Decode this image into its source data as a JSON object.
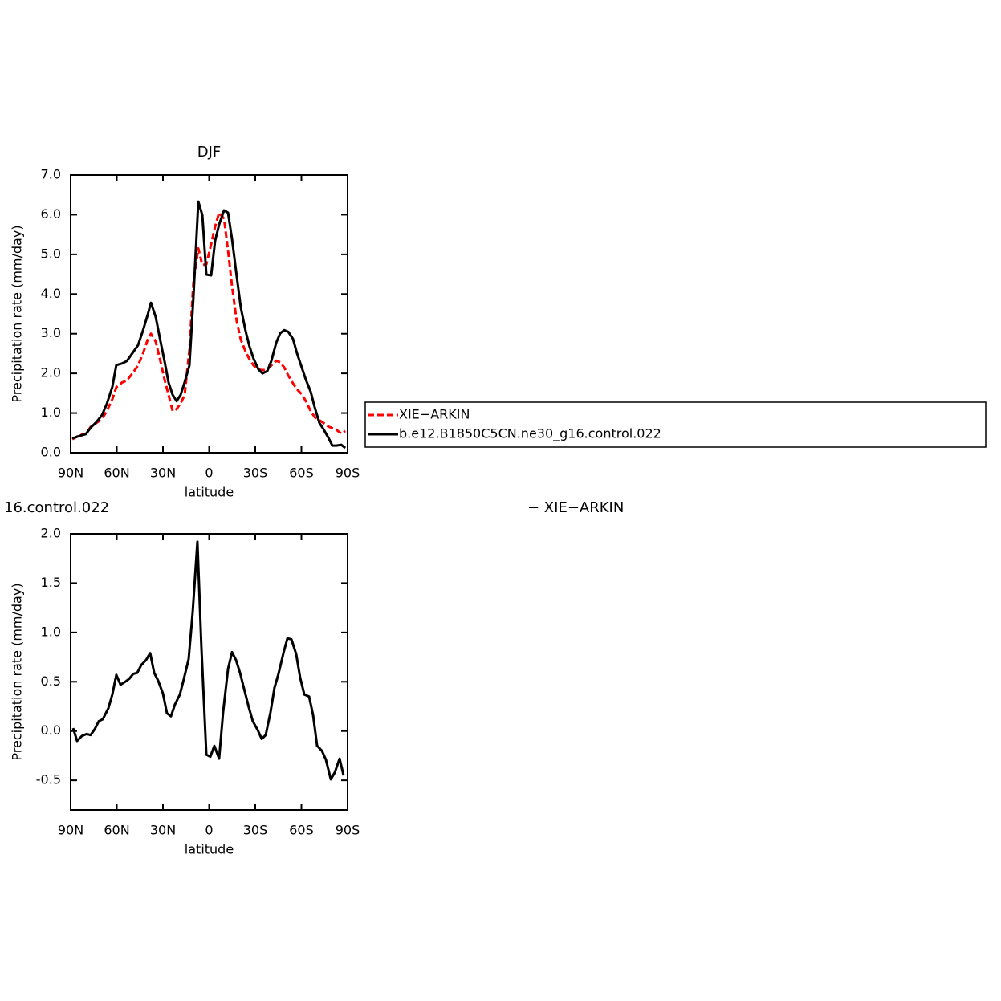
{
  "chart_data": [
    {
      "type": "line",
      "title": "DJF",
      "xlabel": "latitude",
      "ylabel": "Precipitation rate (mm/day)",
      "xlim": [
        90,
        -90
      ],
      "xticks": [
        {
          "value": 90,
          "label": "90N"
        },
        {
          "value": 60,
          "label": "60N"
        },
        {
          "value": 30,
          "label": "30N"
        },
        0,
        {
          "value": -30,
          "label": "30S"
        },
        {
          "value": -60,
          "label": "60S"
        },
        {
          "value": -90,
          "label": "90S"
        }
      ],
      "ylim": [
        0,
        7
      ],
      "yticks": [
        {
          "value": 0,
          "label": "0.0"
        },
        {
          "value": 1,
          "label": "1.0"
        },
        {
          "value": 2,
          "label": "2.0"
        },
        {
          "value": 3,
          "label": "3.0"
        },
        {
          "value": 4,
          "label": "4.0"
        },
        {
          "value": 5,
          "label": "5.0"
        },
        {
          "value": 6,
          "label": "6.0"
        },
        {
          "value": 7,
          "label": "7.0"
        }
      ],
      "legend": "right",
      "x": [
        88.9,
        83.7,
        80.1,
        77.0,
        73.3,
        69.6,
        66.5,
        62.9,
        60.3,
        56.6,
        53.5,
        49.8,
        46.2,
        43.0,
        39.9,
        37.8,
        34.7,
        31.6,
        29.0,
        26.3,
        23.7,
        21.1,
        18.5,
        15.9,
        12.8,
        10.2,
        7.0,
        4.4,
        1.8,
        -1.3,
        -3.9,
        -6.5,
        -9.7,
        -12.3,
        -14.9,
        -18.0,
        -20.6,
        -23.7,
        -26.3,
        -28.9,
        -32.1,
        -34.7,
        -37.8,
        -40.4,
        -43.6,
        -46.2,
        -48.8,
        -51.4,
        -54.5,
        -57.1,
        -60.3,
        -62.9,
        -66.0,
        -68.6,
        -71.7,
        -74.4,
        -77.5,
        -80.1,
        -82.7,
        -85.9,
        -88.5
      ],
      "series": [
        {
          "name": "XIE−ARKIN",
          "color": "#ff0000",
          "linestyle": "dashed",
          "values": [
            0.34,
            0.45,
            0.47,
            0.65,
            0.75,
            0.85,
            1.05,
            1.35,
            1.65,
            1.77,
            1.82,
            2.0,
            2.2,
            2.5,
            2.85,
            3.0,
            2.8,
            2.3,
            1.85,
            1.45,
            1.05,
            1.1,
            1.25,
            1.45,
            2.6,
            4.3,
            5.15,
            4.73,
            4.75,
            5.25,
            5.7,
            6.05,
            5.9,
            5.1,
            4.2,
            3.3,
            2.85,
            2.55,
            2.35,
            2.2,
            2.1,
            2.08,
            2.1,
            2.2,
            2.32,
            2.28,
            2.15,
            1.95,
            1.75,
            1.6,
            1.47,
            1.3,
            1.05,
            0.9,
            0.82,
            0.75,
            0.66,
            0.62,
            0.58,
            0.48,
            0.55
          ]
        },
        {
          "name": "b.e12.B1850C5CN.ne30_g16.control.022",
          "color": "#000000",
          "linestyle": "solid",
          "values": [
            0.36,
            0.43,
            0.47,
            0.63,
            0.77,
            0.95,
            1.23,
            1.66,
            2.21,
            2.25,
            2.31,
            2.51,
            2.71,
            3.08,
            3.48,
            3.78,
            3.42,
            2.81,
            2.31,
            1.76,
            1.46,
            1.3,
            1.46,
            1.78,
            2.2,
            3.92,
            6.33,
            5.99,
            4.49,
            4.47,
            5.34,
            5.75,
            6.11,
            6.05,
            5.38,
            4.43,
            3.66,
            3.07,
            2.67,
            2.37,
            2.1,
            2.0,
            2.06,
            2.31,
            2.77,
            3.01,
            3.09,
            3.05,
            2.87,
            2.51,
            2.14,
            1.84,
            1.54,
            1.15,
            0.75,
            0.59,
            0.38,
            0.18,
            0.18,
            0.2,
            0.12
          ]
        }
      ]
    },
    {
      "type": "line",
      "left_title": "16.control.022",
      "right_title": "− XIE−ARKIN",
      "xlabel": "latitude",
      "ylabel": "Precipitation rate (mm/day)",
      "xlim": [
        90,
        -90
      ],
      "xticks": [
        {
          "value": 90,
          "label": "90N"
        },
        {
          "value": 60,
          "label": "60N"
        },
        {
          "value": 30,
          "label": "30N"
        },
        0,
        {
          "value": -30,
          "label": "30S"
        },
        {
          "value": -60,
          "label": "60S"
        },
        {
          "value": -90,
          "label": "90S"
        }
      ],
      "ylim": [
        -0.8,
        2.0
      ],
      "yticks": [
        -0.5,
        {
          "value": 0,
          "label": "0.0"
        },
        0.5,
        {
          "value": 1,
          "label": "1.0"
        },
        1.5,
        {
          "value": 2,
          "label": "2.0"
        }
      ],
      "x": [
        88.4,
        85.8,
        82.7,
        79.6,
        77.0,
        74.3,
        71.7,
        69.1,
        65.5,
        62.9,
        60.3,
        57.6,
        54.5,
        51.9,
        49.3,
        46.7,
        44.1,
        41.0,
        38.3,
        35.7,
        33.1,
        30.0,
        27.4,
        24.8,
        22.2,
        19.0,
        16.4,
        13.3,
        10.7,
        7.6,
        5.0,
        1.8,
        -0.8,
        -3.4,
        -6.5,
        -9.1,
        -12.3,
        -14.9,
        -17.5,
        -20.1,
        -23.2,
        -25.8,
        -28.4,
        -31.6,
        -34.2,
        -36.8,
        -39.9,
        -42.5,
        -45.1,
        -48.3,
        -50.9,
        -53.5,
        -56.6,
        -59.2,
        -61.9,
        -65.0,
        -67.6,
        -70.2,
        -73.3,
        -75.9,
        -79.1,
        -81.7,
        -84.8,
        -87.4
      ],
      "series": [
        {
          "color": "#000000",
          "linestyle": "solid",
          "values": [
            0.03,
            -0.1,
            -0.05,
            -0.03,
            -0.04,
            0.02,
            0.1,
            0.12,
            0.23,
            0.37,
            0.57,
            0.47,
            0.5,
            0.53,
            0.58,
            0.59,
            0.67,
            0.72,
            0.79,
            0.59,
            0.51,
            0.38,
            0.18,
            0.15,
            0.27,
            0.37,
            0.53,
            0.73,
            1.2,
            1.92,
            0.85,
            -0.24,
            -0.26,
            -0.15,
            -0.28,
            0.19,
            0.63,
            0.8,
            0.72,
            0.59,
            0.4,
            0.24,
            0.1,
            0.01,
            -0.08,
            -0.04,
            0.19,
            0.44,
            0.58,
            0.79,
            0.94,
            0.93,
            0.78,
            0.54,
            0.37,
            0.35,
            0.16,
            -0.15,
            -0.2,
            -0.29,
            -0.49,
            -0.42,
            -0.28,
            -0.45
          ]
        }
      ]
    }
  ]
}
